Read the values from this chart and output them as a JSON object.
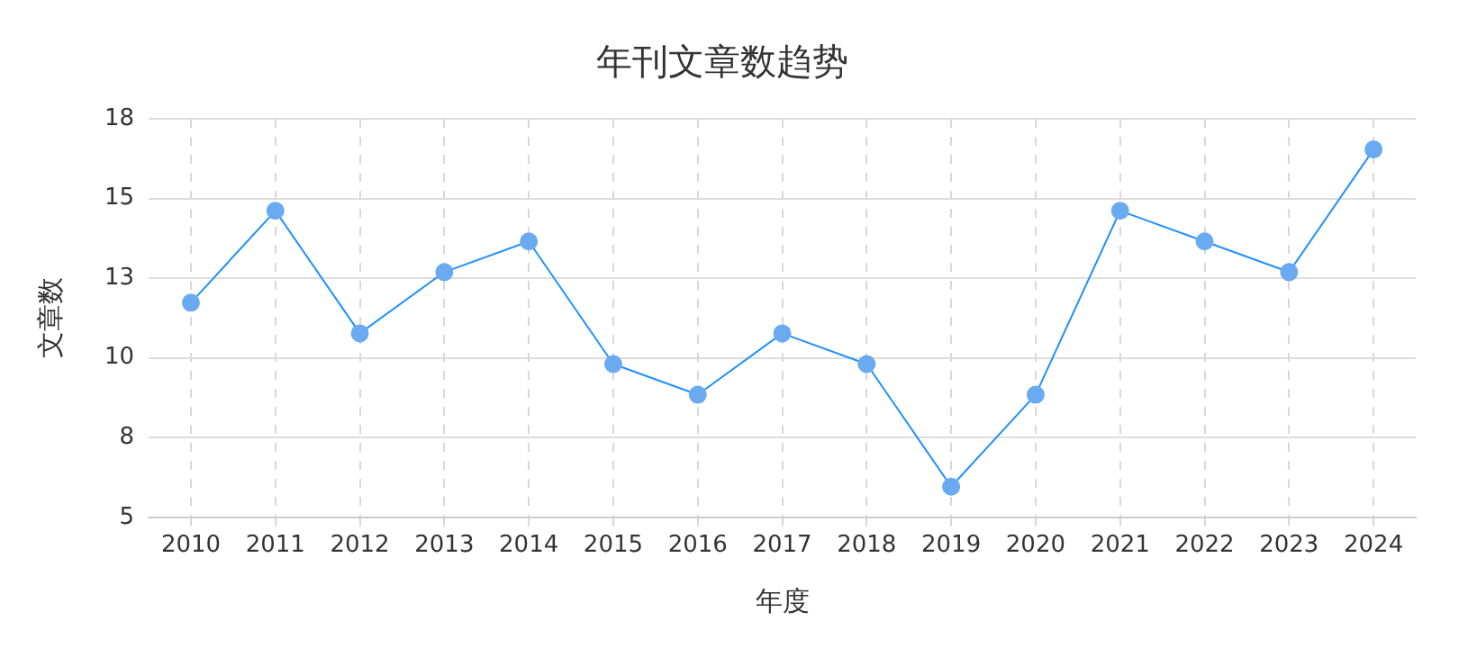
{
  "chart_data": {
    "type": "line",
    "title": "年刊文章数趋势",
    "xlabel": "年度",
    "ylabel": "文章数",
    "categories": [
      "2010",
      "2011",
      "2012",
      "2013",
      "2014",
      "2015",
      "2016",
      "2017",
      "2018",
      "2019",
      "2020",
      "2021",
      "2022",
      "2023",
      "2024"
    ],
    "series": [
      {
        "color": "#1e90ff",
        "values": [
          12,
          15,
          11,
          13,
          14,
          10,
          9,
          11,
          10,
          6,
          9,
          15,
          14,
          13,
          17
        ]
      }
    ],
    "ylim": [
      5,
      18
    ],
    "yticks": [
      5,
      {
        "value": 7.6,
        "label": "8"
      },
      {
        "value": 10.2,
        "label": "10"
      },
      {
        "value": 12.8,
        "label": "13"
      },
      {
        "value": 15.4,
        "label": "15"
      },
      18
    ],
    "grid": true,
    "marker": "circle",
    "line_style": "solid",
    "legend": false
  }
}
